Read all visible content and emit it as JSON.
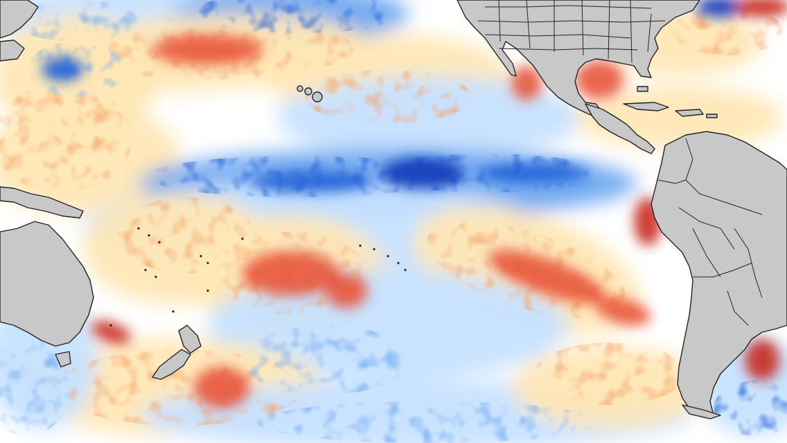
{
  "map": {
    "colors": {
      "ocean_neutral": "#ffffff",
      "cool_light": "#c6e2ff",
      "cool_medium": "#6fa8f0",
      "cool_strong": "#1f5fd6",
      "cool_intense": "#0b36b8",
      "warm_light": "#ffe7b5",
      "warm_medium": "#f6a36a",
      "warm_strong": "#e8543a",
      "warm_intense": "#c8281f",
      "land": "#c8c8c8",
      "border": "#222222"
    },
    "landmasses": [
      "north-america",
      "central-america",
      "south-america",
      "australia",
      "new-zealand",
      "caribbean-islands",
      "maritime-southeast-asia",
      "hawaii"
    ]
  }
}
